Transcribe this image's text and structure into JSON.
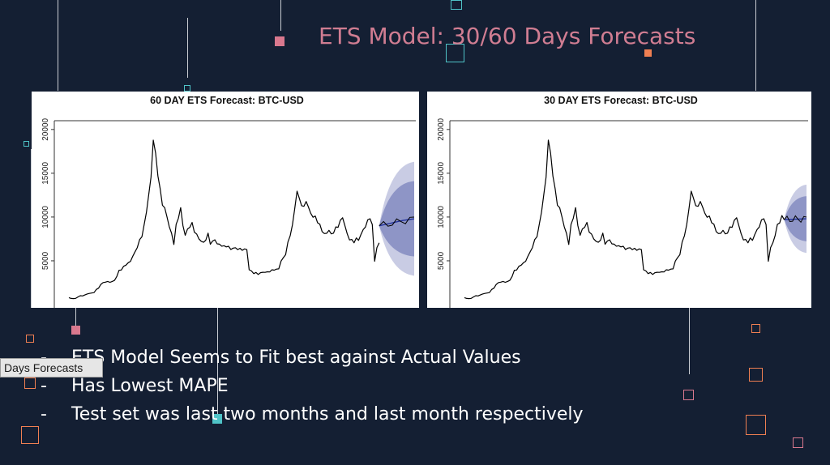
{
  "slide": {
    "title": "ETS Model: 30/60 Days Forecasts",
    "bullets": [
      {
        "marker": "-",
        "text": "ETS Model Seems to Fit best against Actual Values"
      },
      {
        "marker": "-",
        "text": "Has Lowest MAPE"
      },
      {
        "marker": "-",
        "text": "Test set was last two months and last month respectively"
      }
    ],
    "tooltip": "Days Forecasts"
  },
  "colors": {
    "background": "#141f33",
    "title": "#d07d92",
    "pink": "#d9788e",
    "teal": "#4fc3c7",
    "orange": "#ef7f52",
    "forecast_line": "#1f2f9a",
    "forecast_band_80": "#8e95c6",
    "forecast_band_95": "#c9cce4"
  },
  "chart_data": [
    {
      "type": "line",
      "title": "60 DAY ETS Forecast: BTC-USD",
      "xlabel": "",
      "ylabel": "",
      "y_ticks": [
        "5000",
        "10000",
        "15000",
        "20000"
      ],
      "ylim": [
        0,
        21000
      ],
      "grid": false,
      "series": [
        {
          "values": [
            800,
            700,
            700,
            700,
            900,
            1000,
            1000,
            1100,
            1200,
            1300,
            1300,
            1400,
            1700,
            1900,
            2300,
            2500,
            2600,
            2600,
            2600,
            2600,
            2800,
            3200,
            3900,
            4000,
            4300,
            4600,
            4700,
            5000,
            5500,
            6000,
            6600,
            7300,
            7900,
            9000,
            10700,
            12500,
            14500,
            19000,
            17000,
            15000,
            13000,
            11500,
            11000,
            10000,
            9000,
            8000,
            7000,
            9000,
            10000,
            11000,
            9000,
            8000,
            8500,
            9000,
            9200,
            8400,
            8000,
            7500,
            7300,
            7000,
            7500,
            8000,
            7000,
            7200,
            7400,
            7000,
            6800,
            6800,
            6600,
            6700,
            6600,
            6300,
            6500,
            6400,
            6400,
            6300,
            6300,
            6300,
            6300,
            4000,
            3800,
            3600,
            3600,
            3500,
            3600,
            3700,
            3700,
            3700,
            3800,
            3900,
            4000,
            4000,
            4100,
            5000,
            5300,
            5800,
            7000,
            8000,
            9000,
            11000,
            13000,
            12000,
            11500,
            11000,
            12000,
            11000,
            10500,
            10000,
            10000,
            9500,
            9000,
            8500,
            8000,
            8200,
            8500,
            8000,
            8300,
            8700,
            9000,
            9500,
            10000,
            9000,
            8000,
            7500,
            7300,
            7200,
            7500,
            7400,
            8000,
            8500,
            9000,
            9500,
            10000,
            9000,
            5000,
            6500,
            7000
          ]
        },
        {
          "name": "forecast",
          "values": [
            9000,
            9300,
            9600,
            9800
          ]
        }
      ]
    },
    {
      "type": "line",
      "title": "30 DAY ETS Forecast: BTC-USD",
      "xlabel": "",
      "ylabel": "",
      "y_ticks": [
        "5000",
        "10000",
        "15000",
        "20000"
      ],
      "ylim": [
        0,
        21000
      ],
      "grid": false,
      "series": [
        {
          "values": [
            800,
            700,
            700,
            700,
            900,
            1000,
            1000,
            1100,
            1200,
            1300,
            1300,
            1400,
            1700,
            1900,
            2300,
            2500,
            2600,
            2600,
            2600,
            2600,
            2800,
            3200,
            3900,
            4000,
            4300,
            4600,
            4700,
            5000,
            5500,
            6000,
            6600,
            7300,
            7900,
            9000,
            10700,
            12500,
            14500,
            19000,
            17000,
            15000,
            13000,
            11500,
            11000,
            10000,
            9000,
            8000,
            7000,
            9000,
            10000,
            11000,
            9000,
            8000,
            8500,
            9000,
            9200,
            8400,
            8000,
            7500,
            7300,
            7000,
            7500,
            8000,
            7000,
            7200,
            7400,
            7000,
            6800,
            6800,
            6600,
            6700,
            6600,
            6300,
            6500,
            6400,
            6400,
            6300,
            6300,
            6300,
            6300,
            4000,
            3800,
            3600,
            3600,
            3500,
            3600,
            3700,
            3700,
            3700,
            3800,
            3900,
            4000,
            4000,
            4100,
            5000,
            5300,
            5800,
            7000,
            8000,
            9000,
            11000,
            13000,
            12000,
            11500,
            11000,
            12000,
            11000,
            10500,
            10000,
            10000,
            9500,
            9000,
            8500,
            8000,
            8200,
            8500,
            8000,
            8300,
            8700,
            9000,
            9500,
            10000,
            9000,
            8000,
            7500,
            7300,
            7200,
            7500,
            7400,
            8000,
            8500,
            9000,
            9500,
            10000,
            9000,
            5000,
            6500,
            7000,
            8000,
            9000,
            9500,
            10000,
            9800
          ]
        },
        {
          "name": "forecast",
          "values": [
            9700,
            9800
          ]
        }
      ]
    }
  ]
}
